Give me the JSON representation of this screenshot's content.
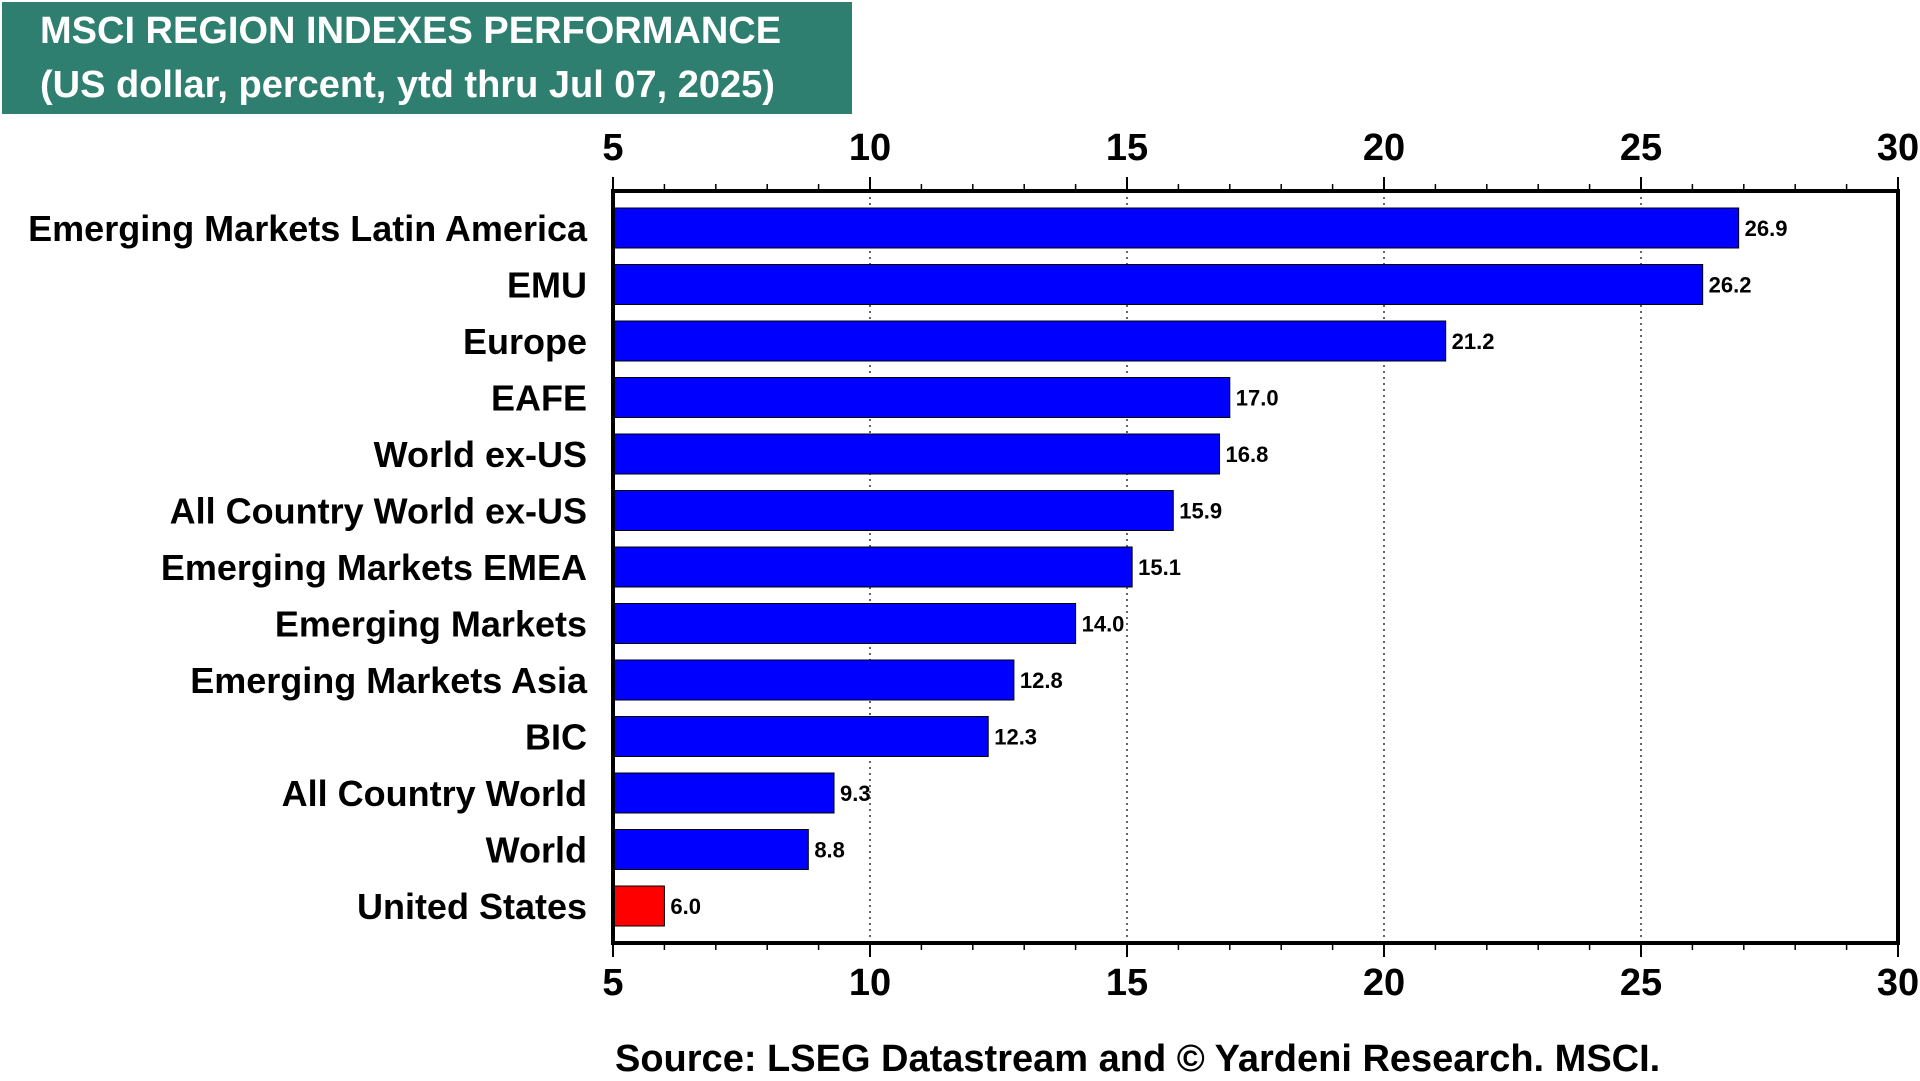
{
  "header": {
    "title_line1": "MSCI REGION INDEXES PERFORMANCE",
    "title_line2": "(US dollar, percent, ytd thru Jul 07, 2025)"
  },
  "footer": {
    "source": "Source: LSEG Datastream and © Yardeni Research. MSCI."
  },
  "chart_data": {
    "type": "bar",
    "orientation": "horizontal",
    "title": "MSCI REGION INDEXES PERFORMANCE",
    "subtitle": "(US dollar, percent, ytd thru Jul 07, 2025)",
    "categories": [
      "Emerging Markets Latin America",
      "EMU",
      "Europe",
      "EAFE",
      "World ex-US",
      "All Country World ex-US",
      "Emerging Markets EMEA",
      "Emerging Markets",
      "Emerging Markets Asia",
      "BIC",
      "All Country World",
      "World",
      "United States"
    ],
    "values": [
      26.9,
      26.2,
      21.2,
      17.0,
      16.8,
      15.9,
      15.1,
      14.0,
      12.8,
      12.3,
      9.3,
      8.8,
      6.0
    ],
    "value_labels": [
      "26.9",
      "26.2",
      "21.2",
      "17.0",
      "16.8",
      "15.9",
      "15.1",
      "14.0",
      "12.8",
      "12.3",
      "9.3",
      "8.8",
      "6.0"
    ],
    "highlight_category": "United States",
    "xlim": [
      5,
      30
    ],
    "xticks": [
      5,
      10,
      15,
      20,
      25,
      30
    ],
    "xtick_labels": [
      "5",
      "10",
      "15",
      "20",
      "25",
      "30"
    ],
    "xaxis_position": "top-and-bottom",
    "grid": "vertical-dotted",
    "legend": "none",
    "colors": {
      "bar": "#0000ff",
      "highlight": "#ff0000",
      "title_background": "#2e7f6f",
      "title_text": "#ffffff"
    }
  }
}
